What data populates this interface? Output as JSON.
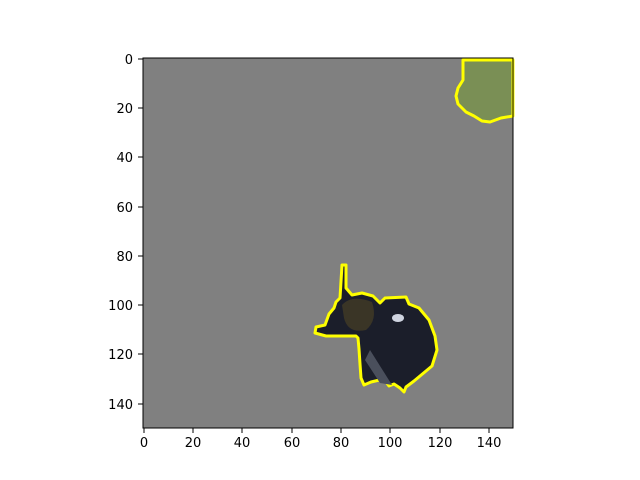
{
  "figure": {
    "x_ticks": [
      "0",
      "20",
      "40",
      "60",
      "80",
      "100",
      "120",
      "140"
    ],
    "y_ticks": [
      "0",
      "20",
      "40",
      "60",
      "80",
      "100",
      "120",
      "140"
    ],
    "x_range": [
      0,
      150
    ],
    "y_range": [
      0,
      150
    ],
    "y_axis_inverted": true,
    "grid": false,
    "colors": {
      "background": "#808080",
      "outline": "#ffff00",
      "beetle": "#1b1e2a",
      "leaf": "#7a8f55"
    }
  }
}
